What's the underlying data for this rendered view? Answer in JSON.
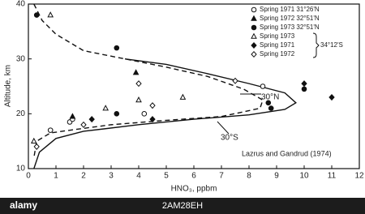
{
  "chart_data": {
    "type": "line",
    "xlabel": "HNO₃, ppbm",
    "ylabel": "Altitude, km",
    "xlim": [
      0,
      12
    ],
    "ylim": [
      10,
      40
    ],
    "xticks": [
      0,
      1,
      2,
      3,
      4,
      5,
      6,
      7,
      8,
      9,
      10,
      11,
      12
    ],
    "yticks": [
      10,
      20,
      30,
      40
    ],
    "grid": false,
    "curves": [
      {
        "name": "30°N",
        "style": "solid",
        "color": "#111",
        "x": [
          0.2,
          0.4,
          1,
          2,
          4,
          6,
          8,
          9.3,
          9.7,
          9.3,
          8,
          6.5,
          5,
          3.5
        ],
        "y": [
          10,
          13,
          15.5,
          16.8,
          18,
          19,
          19.8,
          20.8,
          22,
          23.8,
          25.5,
          27.3,
          29,
          30
        ]
      },
      {
        "name": "30°S",
        "style": "dashed",
        "color": "#111",
        "x": [
          0.2,
          0.5,
          1,
          2,
          3.5,
          5,
          6.5,
          7.8,
          8.5,
          8.4,
          7,
          5,
          3,
          1.5,
          0.8,
          0.3,
          0.2
        ],
        "y": [
          40,
          37,
          34.5,
          31.5,
          30,
          28.5,
          26.8,
          24.5,
          22.5,
          21,
          19.5,
          18.8,
          18,
          17,
          16.5,
          15,
          12
        ]
      }
    ],
    "series": [
      {
        "name": "Spring 1971 31°26'N",
        "marker": "circle-open",
        "color": "#111",
        "x": [
          8.5,
          1.5,
          1.6,
          0.8,
          4.2
        ],
        "y": [
          25,
          18.5,
          19,
          17,
          20
        ]
      },
      {
        "name": "Spring 1972 32°51'N",
        "marker": "triangle-filled",
        "color": "#111",
        "x": [
          3.9,
          1.6
        ],
        "y": [
          27.5,
          19.5
        ]
      },
      {
        "name": "Spring 1973 32°51'N",
        "marker": "circle-filled",
        "color": "#111",
        "x": [
          0.3,
          3.2,
          10,
          8.8,
          3.2,
          8.7
        ],
        "y": [
          38,
          32,
          24.5,
          21,
          20,
          22
        ]
      },
      {
        "name": "Spring 1973",
        "marker": "triangle-open",
        "color": "#111",
        "x": [
          0.8,
          4,
          5.6,
          2.8,
          0.2
        ],
        "y": [
          38,
          22.5,
          23,
          21,
          15
        ]
      },
      {
        "name": "Spring 1971",
        "marker": "diamond-filled",
        "color": "#111",
        "x": [
          11,
          10,
          2.3,
          4.5
        ],
        "y": [
          23,
          25.5,
          19,
          19
        ]
      },
      {
        "name": "Spring 1972",
        "marker": "diamond-open",
        "color": "#111",
        "x": [
          4,
          4.5,
          2,
          0.3,
          7.5
        ],
        "y": [
          25.5,
          21.5,
          18,
          14,
          26
        ]
      }
    ],
    "legend_group": "34°12'S",
    "annotations": [
      "30°N",
      "30°S",
      "Lazrus and Gandrud (1974)"
    ]
  },
  "watermark": {
    "brand": "alamy",
    "id": "2AM28EH"
  }
}
